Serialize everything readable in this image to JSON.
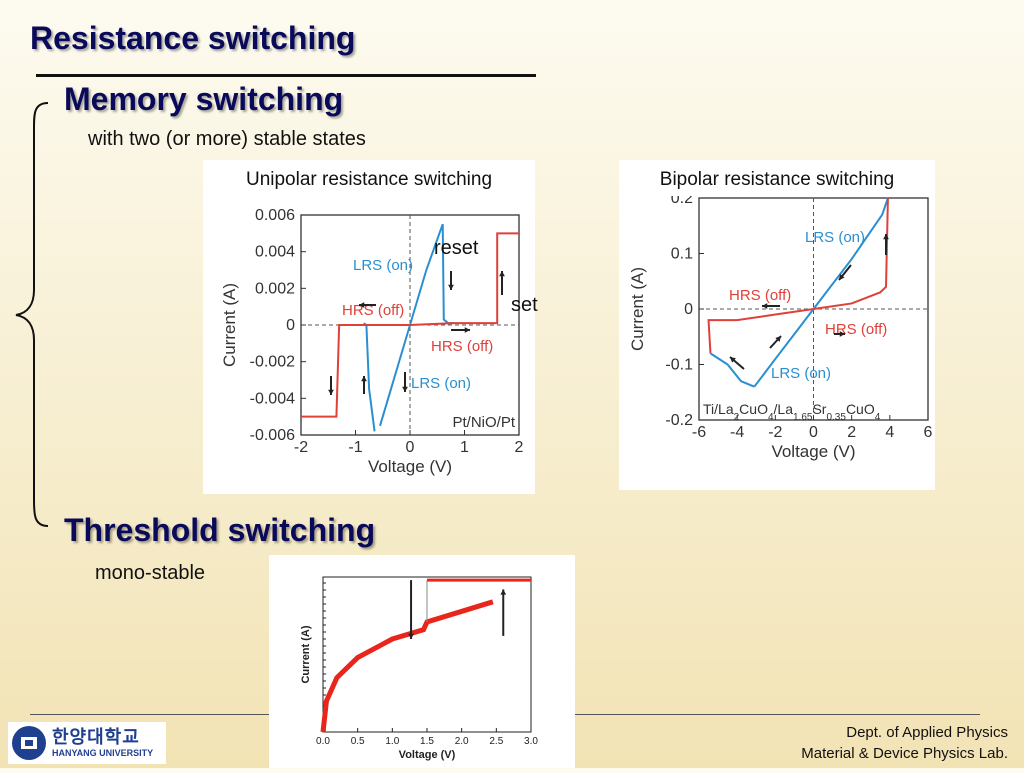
{
  "slide": {
    "title": "Resistance switching",
    "memory_heading": "Memory switching",
    "memory_subtitle": "with two (or more) stable states",
    "threshold_heading": "Threshold switching",
    "threshold_subtitle": "mono-stable",
    "unipolar_label": "Unipolar resistance switching",
    "bipolar_label": "Bipolar resistance switching",
    "reset_label": "reset",
    "set_label": "set",
    "footer_dept": "Dept. of Applied Physics",
    "footer_lab": "Material & Device Physics Lab.",
    "logo_korean": "한양대학교",
    "logo_english": "HANYANG UNIVERSITY",
    "colors": {
      "heading": "#0a0a5a",
      "lrs": "#2a8fd0",
      "hrs": "#e0403a",
      "threshold": "#e8261c"
    }
  },
  "chart_data": [
    {
      "type": "line",
      "xlabel": "Voltage (V)",
      "ylabel": "Current (A)",
      "xlim": [
        -2,
        2
      ],
      "ylim": [
        -0.006,
        0.006
      ],
      "xticks": [
        -2,
        -1,
        0,
        1,
        2
      ],
      "xtick_labels": [
        "-2",
        "-1",
        "0",
        "1",
        "2"
      ],
      "yticks": [
        0.006,
        0.004,
        0.002,
        0,
        -0.002,
        -0.004,
        -0.006
      ],
      "ytick_labels": [
        "0.006",
        "0.004",
        "0.002",
        "0",
        "-0.002",
        "-0.004",
        "-0.006"
      ],
      "sample_label": "Pt/NiO/Pt",
      "annotations": [
        "LRS (on)",
        "HRS (off)",
        "HRS (off)",
        "LRS (on)"
      ],
      "series": [
        {
          "color": "#2a8fd0",
          "x": [
            -0.55,
            -0.3,
            0,
            0.3,
            0.6,
            0.62,
            0.7,
            0.8
          ],
          "y": [
            -0.0055,
            -0.003,
            0,
            0.003,
            0.0055,
            0.0003,
            0.0001,
            0.0001
          ]
        },
        {
          "color": "#2a8fd0",
          "x": [
            -0.65,
            -0.75,
            -0.8,
            -0.85
          ],
          "y": [
            -0.0058,
            -0.0035,
            0,
            0.0001
          ]
        },
        {
          "color": "#e0403a",
          "x": [
            -1.3,
            -0.6,
            0,
            0.8,
            1.6,
            1.6,
            2.0
          ],
          "y": [
            0,
            0,
            0,
            0.0001,
            0.0001,
            0.005,
            0.005
          ]
        },
        {
          "color": "#e0403a",
          "x": [
            -0.75,
            -1.3,
            -1.35,
            -2.0
          ],
          "y": [
            0,
            0,
            -0.005,
            -0.005
          ]
        }
      ]
    },
    {
      "type": "line",
      "xlabel": "Voltage (V)",
      "ylabel": "Current (A)",
      "xlim": [
        -6,
        6
      ],
      "ylim": [
        -0.2,
        0.2
      ],
      "xticks": [
        -6,
        -4,
        -2,
        0,
        2,
        4,
        6
      ],
      "xtick_labels": [
        "-6",
        "-4",
        "-2",
        "0",
        "2",
        "4",
        "6"
      ],
      "yticks": [
        0.2,
        0.1,
        0,
        -0.1,
        -0.2
      ],
      "ytick_labels": [
        "0.2",
        "0.1",
        "0",
        "-0.1",
        "-0.2"
      ],
      "sample_label": "Ti/La2CuO4/La1.65Sr0.35CuO4",
      "annotations": [
        "LRS (on)",
        "HRS (off)",
        "HRS (off)",
        "LRS (on)"
      ],
      "series": [
        {
          "color": "#2a8fd0",
          "x": [
            -3.1,
            -2,
            -1,
            0,
            1,
            2,
            3,
            3.6,
            3.9
          ],
          "y": [
            -0.14,
            -0.09,
            -0.045,
            0,
            0.045,
            0.09,
            0.14,
            0.17,
            0.2
          ]
        },
        {
          "color": "#e0403a",
          "x": [
            3.9,
            3.8,
            3.5,
            2,
            0
          ],
          "y": [
            0.2,
            0.04,
            0.03,
            0.01,
            0
          ]
        },
        {
          "color": "#e0403a",
          "x": [
            0,
            -2,
            -4,
            -5.5,
            -5.4
          ],
          "y": [
            0,
            -0.01,
            -0.02,
            -0.02,
            -0.08
          ]
        },
        {
          "color": "#2a8fd0",
          "x": [
            -5.4,
            -4.5,
            -3.8,
            -3.1
          ],
          "y": [
            -0.08,
            -0.1,
            -0.13,
            -0.14
          ]
        }
      ]
    },
    {
      "type": "scatter",
      "xlabel": "Voltage (V)",
      "ylabel": "Current (A)",
      "xlim": [
        0,
        3.0
      ],
      "xticks": [
        0,
        0.5,
        1.0,
        1.5,
        2.0,
        2.5,
        3.0
      ],
      "xtick_labels": [
        "0.0",
        "0.5",
        "1.0",
        "1.5",
        "2.0",
        "2.5",
        "3.0"
      ],
      "log_y": true,
      "series": [
        {
          "color": "#e8261c",
          "x": [
            0,
            0.05,
            0.2,
            0.5,
            1.0,
            1.45,
            1.5,
            2.45
          ],
          "y_rel": [
            0.0,
            0.2,
            0.35,
            0.48,
            0.6,
            0.66,
            0.71,
            0.84
          ]
        },
        {
          "color": "#e8261c",
          "x": [
            1.5,
            3.0
          ],
          "y_rel": [
            0.98,
            0.98
          ]
        }
      ]
    }
  ]
}
